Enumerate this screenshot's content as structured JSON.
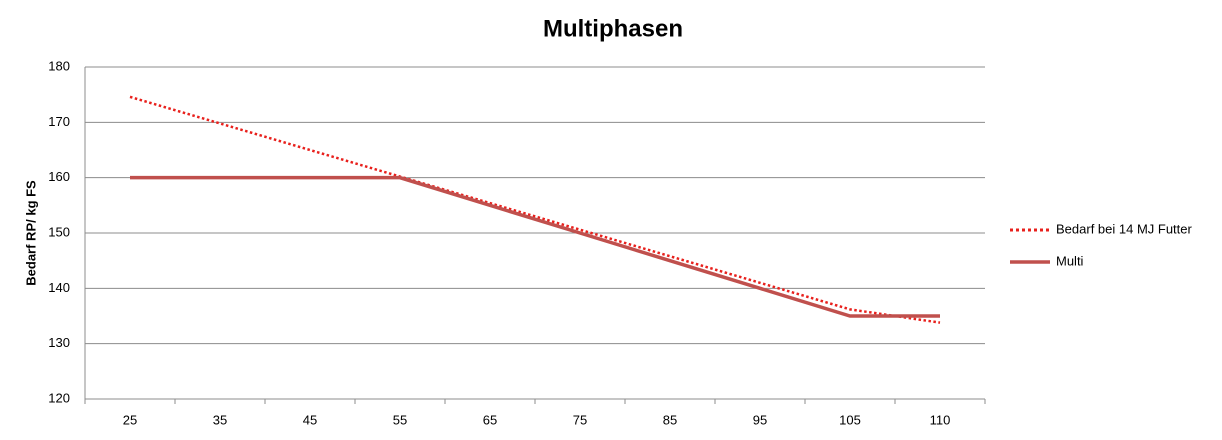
{
  "chart_data": {
    "type": "line",
    "title": "Multiphasen",
    "y_label": "Bedarf RP/ kg FS",
    "categories": [
      25,
      35,
      45,
      55,
      65,
      75,
      85,
      95,
      105,
      110
    ],
    "series": [
      {
        "name": "Bedarf bei 14 MJ Futter",
        "color": "#e8201c",
        "style": "dotted",
        "values": [
          174.6,
          169.8,
          165.0,
          160.2,
          155.4,
          150.6,
          145.8,
          141.0,
          136.2,
          133.8
        ]
      },
      {
        "name": "Multi",
        "color": "#c0504d",
        "style": "solid",
        "values": [
          160,
          160,
          160,
          160,
          155,
          150,
          145,
          140,
          135,
          135
        ]
      }
    ],
    "ylim": [
      120,
      180
    ],
    "yticks": [
      120,
      130,
      140,
      150,
      160,
      170,
      180
    ],
    "grid": true,
    "legend": "right"
  }
}
